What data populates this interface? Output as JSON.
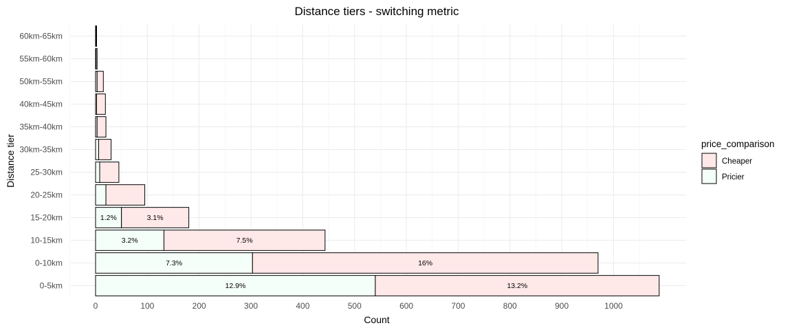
{
  "chart_data": {
    "type": "bar",
    "orientation": "horizontal",
    "stacked": true,
    "title": "Distance tiers - switching metric",
    "xlabel": "Count",
    "ylabel": "Distance tier",
    "xlim": [
      0,
      1090
    ],
    "x_ticks": [
      0,
      100,
      200,
      300,
      400,
      500,
      600,
      700,
      800,
      900,
      1000
    ],
    "grid": true,
    "legend_position": "right",
    "legend_title": "price_comparison",
    "categories": [
      "0-5km",
      "0-10km",
      "10-15km",
      "15-20km",
      "20-25km",
      "25-30km",
      "30km-35km",
      "35km-40km",
      "40km-45km",
      "50km-55km",
      "55km-60km",
      "60km-65km"
    ],
    "series": [
      {
        "name": "Pricier",
        "color": "#f5fff9",
        "values": [
          540,
          303,
          132,
          50,
          20,
          8,
          6,
          3,
          2,
          3,
          1,
          1
        ],
        "labels": [
          "12.9%",
          "7.3%",
          "3.2%",
          "1.2%",
          "",
          "",
          "",
          "",
          "",
          "",
          "",
          ""
        ]
      },
      {
        "name": "Cheaper",
        "color": "#ffe8e8",
        "values": [
          548,
          667,
          311,
          130,
          75,
          37,
          24,
          17,
          17,
          12,
          2,
          1
        ],
        "labels": [
          "13.2%",
          "16%",
          "7.5%",
          "3.1%",
          "",
          "",
          "",
          "",
          "",
          "",
          "",
          ""
        ]
      }
    ]
  }
}
